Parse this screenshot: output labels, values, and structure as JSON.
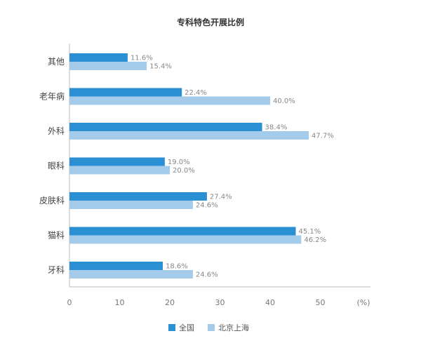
{
  "chart_data": {
    "type": "bar",
    "orientation": "horizontal",
    "title": "专科特色开展比例",
    "categories": [
      "其他",
      "老年病",
      "外科",
      "眼科",
      "皮肤科",
      "猫科",
      "牙科"
    ],
    "series": [
      {
        "name": "全国",
        "color": "#2b8fd3",
        "values": [
          11.6,
          22.4,
          38.4,
          19.0,
          27.4,
          45.1,
          18.6
        ],
        "labels": [
          "11.6%",
          "22.4%",
          "38.4%",
          "19.0%",
          "27.4%",
          "45.1%",
          "18.6%"
        ]
      },
      {
        "name": "北京上海",
        "color": "#a5cbea",
        "values": [
          15.4,
          40.0,
          47.7,
          20.0,
          24.6,
          46.2,
          24.6
        ],
        "labels": [
          "15.4%",
          "40.0%",
          "47.7%",
          "20.0%",
          "24.6%",
          "46.2%",
          "24.6%"
        ]
      }
    ],
    "xlim": [
      0,
      60
    ],
    "xticks": [
      "0",
      "10",
      "20",
      "30",
      "40",
      "50"
    ],
    "xunit": "(%)",
    "grid": false,
    "legend_position": "bottom-center"
  }
}
